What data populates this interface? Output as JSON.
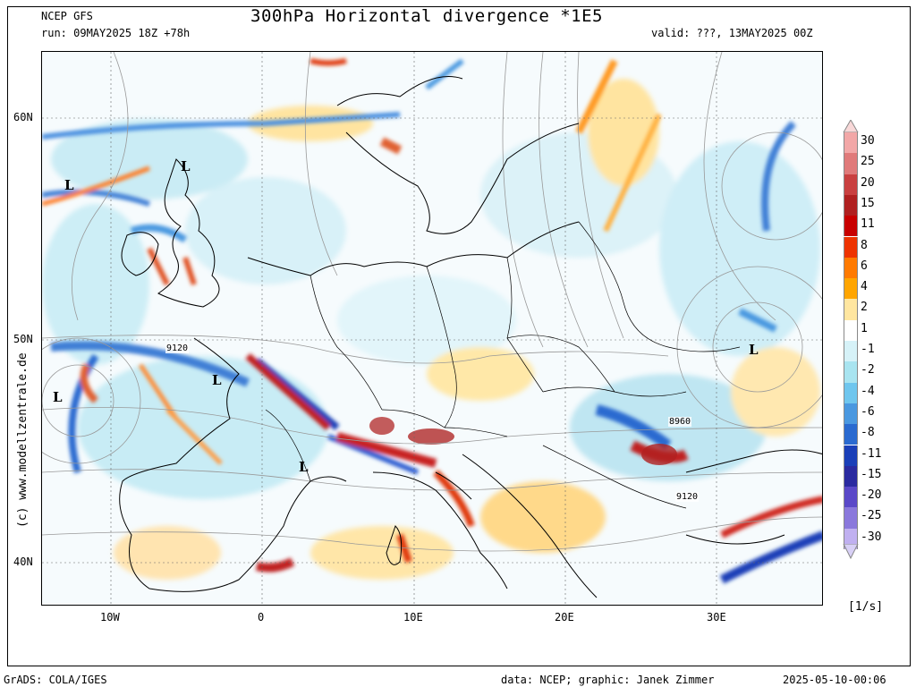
{
  "header": {
    "model": "NCEP GFS",
    "run": "run: 09MAY2025 18Z +78h",
    "title": "300hPa Horizontal divergence *1E5",
    "valid": "valid: ???, 13MAY2025 00Z"
  },
  "axes": {
    "lat_labels": [
      "60N",
      "50N",
      "40N"
    ],
    "lon_labels": [
      "10W",
      "0",
      "10E",
      "20E",
      "30E"
    ]
  },
  "map_labels": {
    "lows": [
      "L",
      "L",
      "L",
      "L",
      "L",
      "L"
    ],
    "contours": [
      "9120",
      "8960",
      "9120"
    ]
  },
  "colorbar": {
    "levels": [
      "30",
      "25",
      "20",
      "15",
      "11",
      "8",
      "6",
      "4",
      "2",
      "1",
      "-1",
      "-2",
      "-4",
      "-6",
      "-8",
      "-11",
      "-15",
      "-20",
      "-25",
      "-30"
    ],
    "colors": [
      "#f2a7a7",
      "#e07a7a",
      "#c94040",
      "#b02020",
      "#c80000",
      "#ee3300",
      "#ff7a00",
      "#ffa500",
      "#ffe6a0",
      "#ffffff",
      "#d6f2f8",
      "#a8e4f0",
      "#6fc6ee",
      "#4a98e0",
      "#2a6ad0",
      "#1a3fb8",
      "#2a2aa0",
      "#5a48c8",
      "#8a78dc",
      "#c0b0f0"
    ],
    "unit": "[1/s]"
  },
  "credit": "(c) www.modellzentrale.de",
  "footer": {
    "left": "GrADS: COLA/IGES",
    "center": "data: NCEP; graphic: Janek Zimmer",
    "right": "2025-05-10-00:06"
  }
}
